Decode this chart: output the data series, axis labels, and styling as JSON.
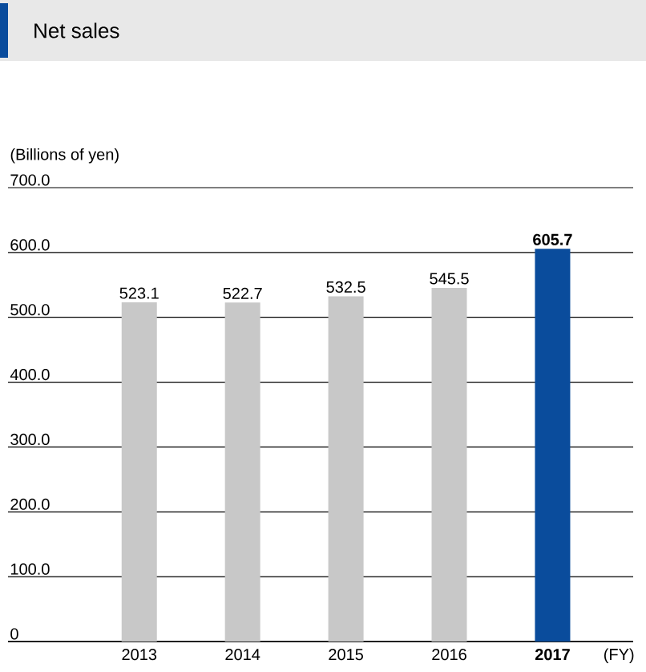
{
  "chart_data": {
    "type": "bar",
    "title": "Net sales",
    "ylabel": "(Billions of yen)",
    "xlabel": "(FY)",
    "categories": [
      "2013",
      "2014",
      "2015",
      "2016",
      "**2017**"
    ],
    "values": [
      523.1,
      522.7,
      532.5,
      545.5,
      605.7
    ],
    "colors": [
      "#c8c8c8",
      "#c8c8c8",
      "#c8c8c8",
      "#c8c8c8",
      "#0a4c9c"
    ],
    "value_labels": [
      "523.1",
      "522.7",
      "532.5",
      "545.5",
      "**605.7**"
    ],
    "ylim": [
      0,
      700
    ],
    "yticks": [
      0,
      {
        "value": 100,
        "label": "100.0"
      },
      {
        "value": 200,
        "label": "200.0"
      },
      {
        "value": 300,
        "label": "300.0"
      },
      {
        "value": 400,
        "label": "400.0"
      },
      {
        "value": 500,
        "label": "500.0"
      },
      {
        "value": 600,
        "label": "600.0"
      },
      {
        "value": 700,
        "label": "700.0"
      }
    ],
    "grid": "y"
  }
}
